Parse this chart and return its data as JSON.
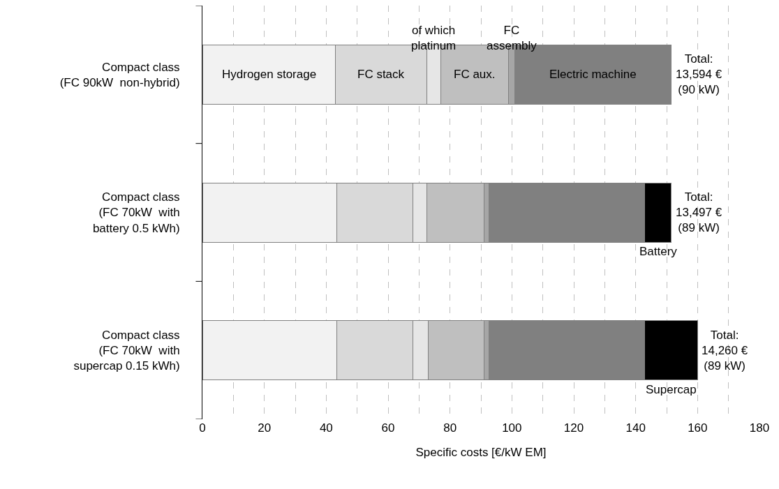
{
  "chart_data": {
    "type": "bar",
    "orientation": "horizontal",
    "stacked": true,
    "xlabel": "Specific costs [€/kW EM]",
    "categories": [
      "Compact class\n(FC 90kW  non-hybrid)",
      "Compact class\n(FC 70kW  with\nbattery 0.5 kWh)",
      "Compact class\n(FC 70kW  with\nsupercap 0.15 kWh)"
    ],
    "series": [
      {
        "name": "Hydrogen storage",
        "color": "#f2f2f2",
        "values": [
          43,
          43.5,
          43.5
        ]
      },
      {
        "name": "FC stack",
        "color": "#d9d9d9",
        "values": [
          29.5,
          24.5,
          24.5
        ]
      },
      {
        "name": "of which platinum",
        "color": "#e6e6e6",
        "values": [
          4.5,
          4.5,
          5
        ]
      },
      {
        "name": "FC aux.",
        "color": "#bfbfbf",
        "values": [
          22,
          18.5,
          18
        ]
      },
      {
        "name": "FC assembly",
        "color": "#a6a6a6",
        "values": [
          2,
          1.5,
          1.5
        ]
      },
      {
        "name": "Electric machine",
        "color": "#808080",
        "values": [
          50.5,
          50.5,
          50.5
        ]
      },
      {
        "name": "Battery",
        "color": "#000000",
        "values": [
          null,
          8.5,
          null
        ]
      },
      {
        "name": "Supercap",
        "color": "#000000",
        "values": [
          null,
          null,
          17
        ]
      }
    ],
    "totals": [
      "Total:\n13,594 €\n(90 kW)",
      "Total:\n13,497 €\n(89 kW)",
      "Total:\n14,260 €\n(89 kW)"
    ],
    "xlim": [
      0,
      180
    ],
    "xticks": [
      0,
      {
        "value": 10,
        "label": null
      },
      20,
      {
        "value": 30,
        "label": null
      },
      40,
      {
        "value": 50,
        "label": null
      },
      60,
      {
        "value": 70,
        "label": null
      },
      80,
      {
        "value": 90,
        "label": null
      },
      100,
      {
        "value": 110,
        "label": null
      },
      120,
      {
        "value": 130,
        "label": null
      },
      140,
      {
        "value": 150,
        "label": null
      },
      160,
      {
        "value": 170,
        "label": null
      },
      180
    ],
    "grid": "x",
    "legend": false
  }
}
